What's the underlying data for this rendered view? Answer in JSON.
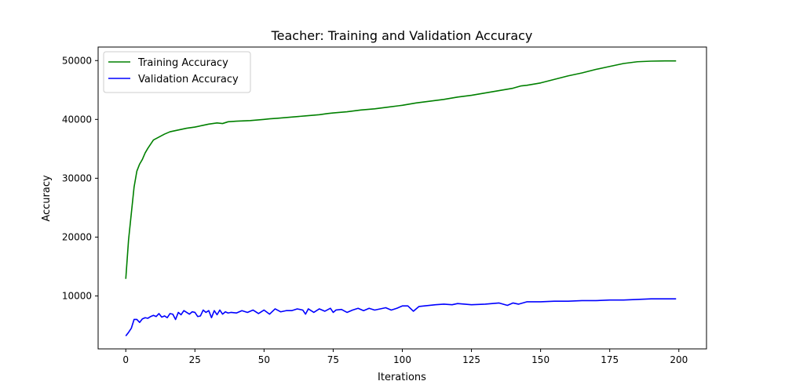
{
  "chart_data": {
    "type": "line",
    "title": "Teacher: Training and Validation Accuracy",
    "xlabel": "Iterations",
    "ylabel": "Accuracy",
    "xlim": [
      -10,
      210
    ],
    "ylim": [
      1000,
      52300
    ],
    "xticks": [
      0,
      25,
      50,
      75,
      100,
      125,
      150,
      175,
      200
    ],
    "yticks": [
      10000,
      20000,
      30000,
      40000,
      50000
    ],
    "grid": false,
    "legend_position": "top-left",
    "series": [
      {
        "name": "Training Accuracy",
        "color": "#008000",
        "x": [
          0,
          1,
          2,
          3,
          4,
          5,
          6,
          7,
          8,
          10,
          12,
          14,
          16,
          18,
          20,
          22,
          25,
          28,
          30,
          33,
          35,
          37,
          40,
          45,
          50,
          52,
          55,
          60,
          65,
          70,
          73,
          75,
          80,
          85,
          90,
          95,
          100,
          105,
          110,
          115,
          120,
          125,
          130,
          135,
          140,
          143,
          145,
          150,
          155,
          160,
          165,
          170,
          175,
          180,
          185,
          190,
          195,
          199
        ],
        "y": [
          12900,
          19500,
          24000,
          28500,
          31200,
          32400,
          33200,
          34300,
          35100,
          36500,
          37000,
          37500,
          37900,
          38100,
          38300,
          38500,
          38700,
          39000,
          39200,
          39400,
          39300,
          39600,
          39700,
          39800,
          40000,
          40100,
          40200,
          40400,
          40600,
          40800,
          41000,
          41100,
          41300,
          41600,
          41800,
          42100,
          42400,
          42800,
          43100,
          43400,
          43800,
          44100,
          44500,
          44900,
          45300,
          45700,
          45800,
          46200,
          46800,
          47400,
          47900,
          48500,
          49000,
          49500,
          49800,
          49900,
          49950,
          49950
        ]
      },
      {
        "name": "Validation Accuracy",
        "color": "#0000ff",
        "x": [
          0,
          1,
          2,
          3,
          4,
          5,
          6,
          7,
          8,
          9,
          10,
          11,
          12,
          13,
          14,
          15,
          16,
          17,
          18,
          19,
          20,
          21,
          22,
          23,
          24,
          25,
          26,
          27,
          28,
          29,
          30,
          31,
          32,
          33,
          34,
          35,
          36,
          37,
          38,
          40,
          42,
          44,
          46,
          48,
          50,
          52,
          54,
          56,
          58,
          60,
          62,
          64,
          65,
          66,
          68,
          70,
          72,
          74,
          75,
          76,
          78,
          80,
          82,
          84,
          86,
          88,
          90,
          92,
          94,
          96,
          98,
          100,
          102,
          104,
          106,
          108,
          110,
          112,
          115,
          118,
          120,
          125,
          130,
          135,
          138,
          140,
          142,
          145,
          150,
          155,
          160,
          165,
          170,
          175,
          180,
          185,
          190,
          195,
          199
        ],
        "y": [
          3200,
          3800,
          4500,
          6000,
          6000,
          5500,
          6100,
          6300,
          6200,
          6500,
          6700,
          6500,
          7000,
          6400,
          6600,
          6300,
          7000,
          6900,
          6000,
          7200,
          6800,
          7500,
          7200,
          6900,
          7300,
          7200,
          6500,
          6600,
          7600,
          7200,
          7500,
          6300,
          7500,
          6800,
          7600,
          6900,
          7300,
          7100,
          7200,
          7100,
          7500,
          7200,
          7600,
          7000,
          7600,
          6900,
          7800,
          7300,
          7500,
          7500,
          7800,
          7600,
          6900,
          7800,
          7200,
          7800,
          7400,
          7900,
          7200,
          7600,
          7700,
          7200,
          7600,
          7900,
          7500,
          7900,
          7600,
          7800,
          8000,
          7600,
          7900,
          8300,
          8300,
          7400,
          8200,
          8300,
          8400,
          8500,
          8600,
          8500,
          8700,
          8500,
          8600,
          8800,
          8400,
          8800,
          8600,
          9000,
          9000,
          9100,
          9100,
          9200,
          9200,
          9300,
          9300,
          9400,
          9500,
          9500,
          9500
        ]
      }
    ]
  }
}
